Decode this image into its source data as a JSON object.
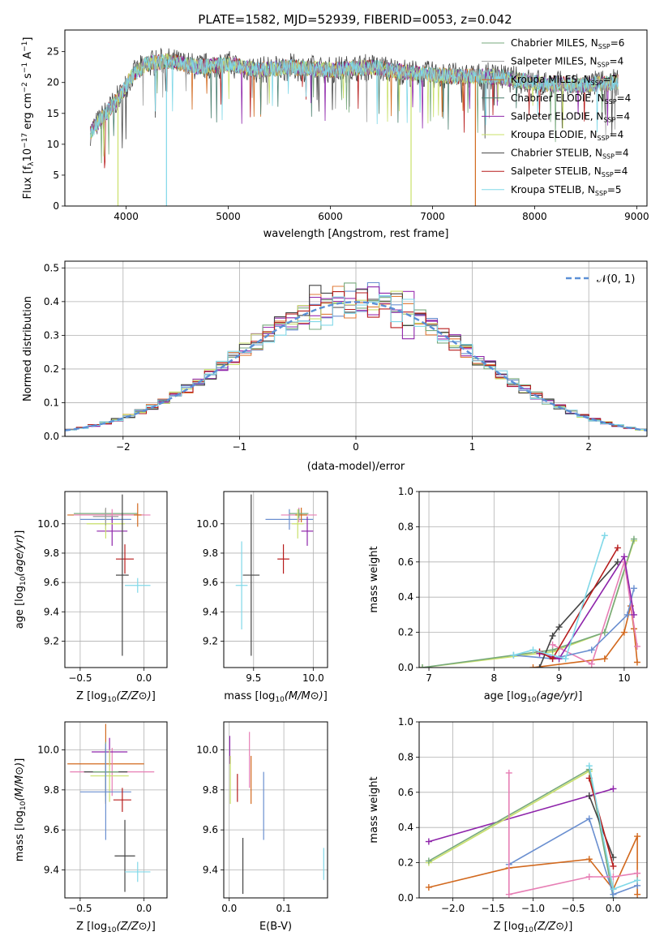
{
  "title": "PLATE=1582, MJD=52939, FIBERID=0053, z=0.042",
  "palette": [
    "#6a8fd0",
    "#9b2fb0",
    "#e07b39",
    "#77a97c",
    "#8e24aa",
    "#c9e06a",
    "#444444",
    "#b71c1c",
    "#80d8e8",
    "#e77fb5",
    "#3f6fc1",
    "#d2691e"
  ],
  "chart_data": [
    {
      "id": "spectrum",
      "type": "line",
      "xlabel": "wavelength [Angstrom, rest frame]",
      "ylabel": "Flux [f_λ 10^-17 erg cm^-2 s^-1 A^-1]",
      "xlim": [
        3400,
        9100
      ],
      "ylim": [
        0,
        28.5
      ],
      "xticks": [
        4000,
        5000,
        6000,
        7000,
        8000,
        9000
      ],
      "yticks": [
        0,
        5,
        10,
        15,
        20,
        25
      ],
      "grid": false,
      "legend": "right",
      "series": [
        {
          "name": "Chabrier MILES, N_SSP=6",
          "legend_label": "Chabrier MILES, N",
          "sub": "SSP",
          "sup_val": "=6",
          "color": "#77a97c"
        },
        {
          "name": "Salpeter MILES, N_SSP=4",
          "legend_label": "Salpeter MILES, N",
          "sub": "SSP",
          "sup_val": "=4",
          "color": "#a0a0a0"
        },
        {
          "name": "Kroupa MILES, N_SSP=7",
          "legend_label": "Kroupa MILES, N",
          "sub": "SSP",
          "sup_val": "=7",
          "color": "#d2691e"
        },
        {
          "name": "Chabrier ELODIE, N_SSP=4",
          "legend_label": "Chabrier ELODIE, N",
          "sub": "SSP",
          "sup_val": "=4",
          "color": "#4a7f6f"
        },
        {
          "name": "Salpeter ELODIE, N_SSP=4",
          "legend_label": "Salpeter ELODIE, N",
          "sub": "SSP",
          "sup_val": "=4",
          "color": "#8e24aa"
        },
        {
          "name": "Kroupa ELODIE, N_SSP=4",
          "legend_label": "Kroupa ELODIE, N",
          "sub": "SSP",
          "sup_val": "=4",
          "color": "#c9e06a"
        },
        {
          "name": "Chabrier STELIB, N_SSP=4",
          "legend_label": "Chabrier STELIB, N",
          "sub": "SSP",
          "sup_val": "=4",
          "color": "#444444"
        },
        {
          "name": "Salpeter STELIB, N_SSP=4",
          "legend_label": "Salpeter STELIB, N",
          "sub": "SSP",
          "sup_val": "=4",
          "color": "#b71c1c"
        },
        {
          "name": "Kroupa STELIB, N_SSP=5",
          "legend_label": "Kroupa STELIB, N",
          "sub": "SSP",
          "sup_val": "=5",
          "color": "#80d8e8"
        }
      ],
      "continuum": [
        [
          3650,
          12
        ],
        [
          3800,
          15
        ],
        [
          3950,
          18
        ],
        [
          4050,
          21
        ],
        [
          4200,
          23
        ],
        [
          4400,
          23.5
        ],
        [
          4700,
          22.5
        ],
        [
          5000,
          23
        ],
        [
          5300,
          22
        ],
        [
          5600,
          22.5
        ],
        [
          6000,
          22
        ],
        [
          6400,
          22.5
        ],
        [
          6800,
          21.5
        ],
        [
          7200,
          21
        ],
        [
          7600,
          21
        ],
        [
          8000,
          20
        ],
        [
          8400,
          19.5
        ],
        [
          8800,
          20
        ]
      ],
      "dropouts": [
        {
          "x": 3920,
          "color": "#c9e06a"
        },
        {
          "x": 4395,
          "color": "#80d8e8"
        },
        {
          "x": 6790,
          "color": "#c9e06a"
        },
        {
          "x": 7420,
          "color": "#d2691e"
        }
      ]
    },
    {
      "id": "residuals",
      "type": "bar",
      "xlabel": "(data-model)/error",
      "ylabel": "Normed distribution",
      "xlim": [
        -2.5,
        2.5
      ],
      "ylim": [
        0,
        0.52
      ],
      "xticks": [
        -2,
        -1,
        0,
        1,
        2
      ],
      "xtick_labels": [
        "−2",
        "−1",
        "0",
        "1",
        "2"
      ],
      "yticks": [
        0,
        0.1,
        0.2,
        0.3,
        0.4,
        0.5
      ],
      "ytick_labels": [
        "0.0",
        "0.1",
        "0.2",
        "0.3",
        "0.4",
        "0.5"
      ],
      "grid": true,
      "legend": "top-right",
      "legend_label": "𝒩(0, 1)",
      "bin_width": 0.1
    },
    {
      "id": "age-vs-Z",
      "type": "scatter",
      "xlabel": "Z [log10(Z/Z⊙)]",
      "ylabel": "age  [log10(age/yr)]",
      "xlim": [
        -0.62,
        0.18
      ],
      "ylim": [
        9.02,
        10.22
      ],
      "xticks": [
        -0.5,
        0.0
      ],
      "xtick_labels": [
        "−0.5",
        "0.0"
      ],
      "yticks": [
        9.2,
        9.4,
        9.6,
        9.8,
        10.0
      ],
      "ytick_labels": [
        "9.2",
        "9.4",
        "9.6",
        "9.8",
        "10.0"
      ],
      "grid": true,
      "points": [
        {
          "x": -0.3,
          "y": 10.06,
          "xerr": 0.3,
          "yerr": 0.04,
          "color": "#d2691e"
        },
        {
          "x": -0.3,
          "y": 10.07,
          "xerr": 0.25,
          "yerr": 0.03,
          "color": "#77a97c"
        },
        {
          "x": -0.25,
          "y": 10.06,
          "xerr": 0.3,
          "yerr": 0.04,
          "color": "#e77fb5"
        },
        {
          "x": -0.3,
          "y": 10.03,
          "xerr": 0.2,
          "yerr": 0.07,
          "color": "#6a8fd0"
        },
        {
          "x": -0.25,
          "y": 9.95,
          "xerr": 0.12,
          "yerr": 0.1,
          "color": "#8e24aa"
        },
        {
          "x": -0.3,
          "y": 10.0,
          "xerr": 0.15,
          "yerr": 0.1,
          "color": "#c9e06a"
        },
        {
          "x": -0.3,
          "y": 10.05,
          "xerr": 0.1,
          "yerr": 0.06,
          "color": "#9e9e9e"
        },
        {
          "x": -0.15,
          "y": 9.76,
          "xerr": 0.07,
          "yerr": 0.1,
          "color": "#b71c1c"
        },
        {
          "x": -0.17,
          "y": 9.65,
          "xerr": 0.05,
          "yerr": 0.55,
          "color": "#444444"
        },
        {
          "x": -0.05,
          "y": 9.58,
          "xerr": 0.1,
          "yerr": 0.05,
          "color": "#80d8e8"
        },
        {
          "x": -0.05,
          "y": 10.06,
          "xerr": 0.03,
          "yerr": 0.08,
          "color": "#d2691e"
        }
      ]
    },
    {
      "id": "age-vs-mass",
      "type": "scatter",
      "xlabel": "mass [log10(M/M⊙)]",
      "ylabel": "",
      "xlim": [
        9.25,
        10.12
      ],
      "ylim": [
        9.02,
        10.22
      ],
      "xticks": [
        9.5,
        10.0
      ],
      "xtick_labels": [
        "9.5",
        "10.0"
      ],
      "yticks": [
        9.2,
        9.4,
        9.6,
        9.8,
        10.0
      ],
      "ytick_labels": [
        "9.2",
        "9.4",
        "9.6",
        "9.8",
        "10.0"
      ],
      "grid": true,
      "points": [
        {
          "x": 9.48,
          "y": 9.65,
          "xerr": 0.07,
          "yerr": 0.55,
          "color": "#444444"
        },
        {
          "x": 9.4,
          "y": 9.58,
          "xerr": 0.05,
          "yerr": 0.3,
          "color": "#80d8e8"
        },
        {
          "x": 9.75,
          "y": 9.76,
          "xerr": 0.05,
          "yerr": 0.1,
          "color": "#b71c1c"
        },
        {
          "x": 9.8,
          "y": 10.03,
          "xerr": 0.2,
          "yerr": 0.07,
          "color": "#6a8fd0"
        },
        {
          "x": 9.88,
          "y": 10.06,
          "xerr": 0.15,
          "yerr": 0.05,
          "color": "#e77fb5"
        },
        {
          "x": 9.9,
          "y": 10.06,
          "xerr": 0.05,
          "yerr": 0.05,
          "color": "#d2691e"
        },
        {
          "x": 9.88,
          "y": 10.07,
          "xerr": 0.08,
          "yerr": 0.03,
          "color": "#77a97c"
        },
        {
          "x": 9.87,
          "y": 10.0,
          "xerr": 0.05,
          "yerr": 0.1,
          "color": "#c9e06a"
        },
        {
          "x": 9.95,
          "y": 9.95,
          "xerr": 0.05,
          "yerr": 0.1,
          "color": "#8e24aa"
        }
      ]
    },
    {
      "id": "mass-weight-vs-age",
      "type": "line",
      "xlabel": "age  [log10(age/yr)]",
      "ylabel": "mass weight",
      "xlim": [
        6.85,
        10.35
      ],
      "ylim": [
        0,
        1.0
      ],
      "xticks": [
        7,
        8,
        9,
        10
      ],
      "xtick_labels": [
        "7",
        "8",
        "9",
        "10"
      ],
      "yticks": [
        0,
        0.2,
        0.4,
        0.6,
        0.8,
        1.0
      ],
      "ytick_labels": [
        "0.0",
        "0.2",
        "0.4",
        "0.6",
        "0.8",
        "1.0"
      ],
      "grid": true,
      "lines": [
        {
          "color": "#d2691e",
          "points": [
            [
              8.6,
              0
            ],
            [
              9.7,
              0.05
            ],
            [
              10.0,
              0.2
            ],
            [
              10.1,
              0.35
            ],
            [
              10.15,
              0.22
            ],
            [
              10.2,
              0.03
            ]
          ]
        },
        {
          "color": "#c9e06a",
          "points": [
            [
              6.9,
              0
            ],
            [
              8.9,
              0.09
            ],
            [
              9.7,
              0.2
            ],
            [
              10.15,
              0.72
            ]
          ]
        },
        {
          "color": "#77a97c",
          "points": [
            [
              6.9,
              0
            ],
            [
              8.9,
              0.1
            ],
            [
              9.7,
              0.2
            ],
            [
              10.15,
              0.73
            ]
          ]
        },
        {
          "color": "#e77fb5",
          "points": [
            [
              8.9,
              0.13
            ],
            [
              9.5,
              0.02
            ],
            [
              10.0,
              0.6
            ],
            [
              10.2,
              0.12
            ]
          ]
        },
        {
          "color": "#6a8fd0",
          "points": [
            [
              8.3,
              0.07
            ],
            [
              8.9,
              0.05
            ],
            [
              9.5,
              0.1
            ],
            [
              10.05,
              0.3
            ],
            [
              10.15,
              0.45
            ]
          ]
        },
        {
          "color": "#8e24aa",
          "points": [
            [
              8.7,
              0.08
            ],
            [
              9.0,
              0.05
            ],
            [
              10.0,
              0.63
            ],
            [
              10.15,
              0.3
            ]
          ]
        },
        {
          "color": "#444444",
          "points": [
            [
              8.7,
              0
            ],
            [
              8.9,
              0.18
            ],
            [
              9.0,
              0.23
            ],
            [
              9.9,
              0.6
            ]
          ]
        },
        {
          "color": "#b71c1c",
          "points": [
            [
              8.7,
              0.09
            ],
            [
              8.9,
              0.05
            ],
            [
              9.9,
              0.68
            ]
          ]
        },
        {
          "color": "#80d8e8",
          "points": [
            [
              8.3,
              0.07
            ],
            [
              8.6,
              0.1
            ],
            [
              9.1,
              0.05
            ],
            [
              9.7,
              0.75
            ]
          ]
        }
      ]
    },
    {
      "id": "mass-vs-Z",
      "type": "scatter",
      "xlabel": "Z [log10(Z/Z⊙)]",
      "ylabel": "mass [log10(M/M⊙)]",
      "xlim": [
        -0.62,
        0.18
      ],
      "ylim": [
        9.26,
        10.14
      ],
      "xticks": [
        -0.5,
        0.0
      ],
      "xtick_labels": [
        "−0.5",
        "0.0"
      ],
      "yticks": [
        9.4,
        9.6,
        9.8,
        10.0
      ],
      "ytick_labels": [
        "9.4",
        "9.6",
        "9.8",
        "10.0"
      ],
      "grid": true,
      "points": [
        {
          "x": -0.3,
          "y": 9.93,
          "xerr": 0.3,
          "yerr": 0.2,
          "color": "#d2691e"
        },
        {
          "x": -0.25,
          "y": 9.89,
          "xerr": 0.33,
          "yerr": 0.12,
          "color": "#e77fb5"
        },
        {
          "x": -0.27,
          "y": 9.99,
          "xerr": 0.14,
          "yerr": 0.07,
          "color": "#8e24aa"
        },
        {
          "x": -0.3,
          "y": 9.89,
          "xerr": 0.17,
          "yerr": 0.12,
          "color": "#444444"
        },
        {
          "x": -0.27,
          "y": 9.87,
          "xerr": 0.15,
          "yerr": 0.13,
          "color": "#c9e06a"
        },
        {
          "x": -0.3,
          "y": 9.89,
          "xerr": 0.1,
          "yerr": 0.15,
          "color": "#77a97c"
        },
        {
          "x": -0.3,
          "y": 9.79,
          "xerr": 0.2,
          "yerr": 0.24,
          "color": "#6a8fd0"
        },
        {
          "x": -0.17,
          "y": 9.75,
          "xerr": 0.07,
          "yerr": 0.06,
          "color": "#b71c1c"
        },
        {
          "x": -0.15,
          "y": 9.47,
          "xerr": 0.08,
          "yerr": 0.18,
          "color": "#444444"
        },
        {
          "x": -0.05,
          "y": 9.39,
          "xerr": 0.1,
          "yerr": 0.05,
          "color": "#80d8e8"
        }
      ]
    },
    {
      "id": "mass-vs-ebv",
      "type": "scatter",
      "xlabel": "E(B-V)",
      "ylabel": "",
      "xlim": [
        -0.01,
        0.18
      ],
      "ylim": [
        9.26,
        10.14
      ],
      "xticks": [
        0.0,
        0.1
      ],
      "xtick_labels": [
        "0.0",
        "0.1"
      ],
      "yticks": [
        9.4,
        9.6,
        9.8,
        10.0
      ],
      "ytick_labels": [
        "9.4",
        "9.6",
        "9.8",
        "10.0"
      ],
      "grid": true,
      "points": [
        {
          "x": 0.001,
          "y": 10.0,
          "xerr": 0,
          "yerr": 0.07,
          "color": "#8e24aa"
        },
        {
          "x": 0.002,
          "y": 9.85,
          "xerr": 0,
          "yerr": 0.12,
          "color": "#c9e06a"
        },
        {
          "x": 0.015,
          "y": 9.81,
          "xerr": 0,
          "yerr": 0.07,
          "color": "#b71c1c"
        },
        {
          "x": 0.025,
          "y": 9.42,
          "xerr": 0,
          "yerr": 0.14,
          "color": "#444444"
        },
        {
          "x": 0.037,
          "y": 9.95,
          "xerr": 0,
          "yerr": 0.14,
          "color": "#e77fb5"
        },
        {
          "x": 0.04,
          "y": 9.85,
          "xerr": 0,
          "yerr": 0.12,
          "color": "#d2691e"
        },
        {
          "x": 0.063,
          "y": 9.72,
          "xerr": 0,
          "yerr": 0.17,
          "color": "#6a8fd0"
        },
        {
          "x": 0.173,
          "y": 9.43,
          "xerr": 0,
          "yerr": 0.08,
          "color": "#80d8e8"
        }
      ]
    },
    {
      "id": "mass-weight-vs-Z",
      "type": "line",
      "xlabel": "Z [log10(Z/Z⊙)]",
      "ylabel": "mass weight",
      "xlim": [
        -2.42,
        0.42
      ],
      "ylim": [
        0,
        1.0
      ],
      "xticks": [
        -2.0,
        -1.5,
        -1.0,
        -0.5,
        0.0
      ],
      "xtick_labels": [
        "−2.0",
        "−1.5",
        "−1.0",
        "−0.5",
        "0.0"
      ],
      "yticks": [
        0,
        0.2,
        0.4,
        0.6,
        0.8,
        1.0
      ],
      "ytick_labels": [
        "0.0",
        "0.2",
        "0.4",
        "0.6",
        "0.8",
        "1.0"
      ],
      "grid": true,
      "lines": [
        {
          "color": "#d2691e",
          "points": [
            [
              -2.3,
              0.06
            ],
            [
              -1.3,
              0.17
            ],
            [
              -0.3,
              0.22
            ],
            [
              0.0,
              0.05
            ],
            [
              0.3,
              0.35
            ],
            [
              0.3,
              0.02
            ]
          ]
        },
        {
          "color": "#8e24aa",
          "points": [
            [
              -2.3,
              0.32
            ],
            [
              -0.3,
              0.58
            ],
            [
              0.0,
              0.62
            ]
          ]
        },
        {
          "color": "#c9e06a",
          "points": [
            [
              -2.3,
              0.2
            ],
            [
              -0.3,
              0.72
            ],
            [
              0.0,
              0.05
            ]
          ]
        },
        {
          "color": "#77a97c",
          "points": [
            [
              -2.3,
              0.21
            ],
            [
              -0.3,
              0.73
            ],
            [
              0.0,
              0.0
            ]
          ]
        },
        {
          "color": "#6a8fd0",
          "points": [
            [
              -1.3,
              0.19
            ],
            [
              -0.3,
              0.45
            ],
            [
              0.0,
              0.02
            ],
            [
              0.3,
              0.07
            ]
          ]
        },
        {
          "color": "#e77fb5",
          "points": [
            [
              -1.3,
              0.71
            ],
            [
              -1.3,
              0.02
            ],
            [
              -0.3,
              0.12
            ],
            [
              0.0,
              0.12
            ],
            [
              0.3,
              0.14
            ]
          ]
        },
        {
          "color": "#444444",
          "points": [
            [
              -0.3,
              0.58
            ],
            [
              0.0,
              0.23
            ]
          ]
        },
        {
          "color": "#b71c1c",
          "points": [
            [
              -0.3,
              0.68
            ],
            [
              0.0,
              0.18
            ]
          ]
        },
        {
          "color": "#80d8e8",
          "points": [
            [
              -0.3,
              0.75
            ],
            [
              0.0,
              0.05
            ],
            [
              0.3,
              0.1
            ]
          ]
        }
      ]
    }
  ]
}
